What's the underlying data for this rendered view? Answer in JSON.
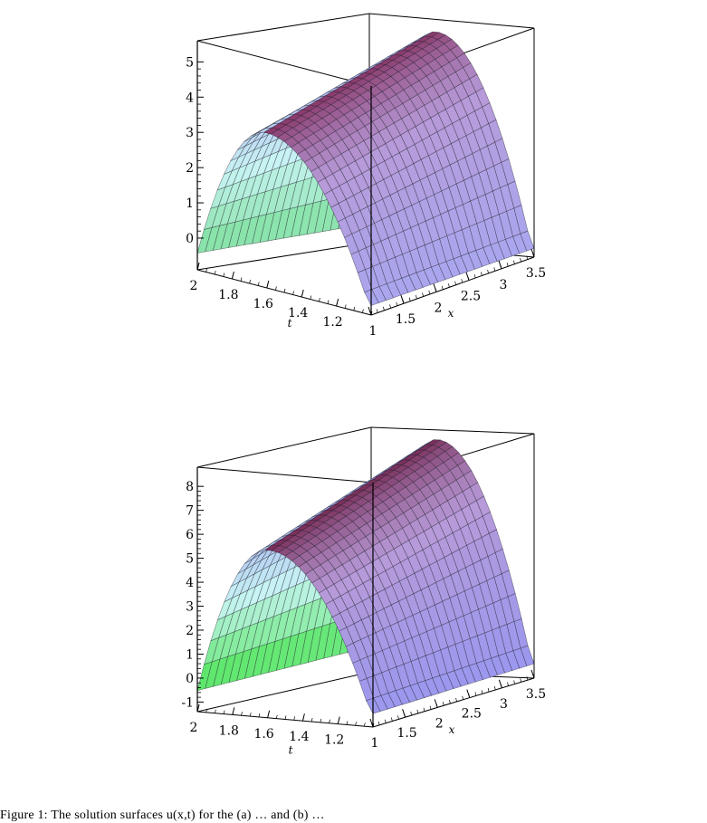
{
  "caption": "Figure 1: The solution surfaces u(x,t) for the (a) … and (b) …",
  "chart_data": [
    {
      "type": "surface",
      "xlabel": "x",
      "ylabel": "t",
      "x_ticks": [
        "1",
        "1.5",
        "2",
        "2.5",
        "3",
        "3.5"
      ],
      "t_ticks": [
        "1.2",
        "1.4",
        "1.6",
        "1.8",
        "2"
      ],
      "z_ticks": [
        "0",
        "1",
        "2",
        "3",
        "4",
        "5"
      ],
      "xlim": [
        1,
        3.5
      ],
      "tlim": [
        1,
        2
      ],
      "zlim": [
        -0.9,
        5.6
      ],
      "z_peak": 5.0,
      "z_far_corner": -0.9,
      "colormap": [
        "#6fdc8c",
        "#c8f4f4",
        "#a9a7f0",
        "#b79ad8",
        "#8a3a6c"
      ]
    },
    {
      "type": "surface",
      "xlabel": "x",
      "ylabel": "t",
      "x_ticks": [
        "1",
        "1.5",
        "2",
        "2.5",
        "3",
        "3.5"
      ],
      "t_ticks": [
        "1.2",
        "1.4",
        "1.6",
        "1.8",
        "2"
      ],
      "z_ticks": [
        "-1",
        "0",
        "1",
        "2",
        "3",
        "4",
        "5",
        "6",
        "7",
        "8"
      ],
      "xlim": [
        1,
        3.5
      ],
      "tlim": [
        1,
        2
      ],
      "zlim": [
        -1.4,
        8.8
      ],
      "z_peak": 8.0,
      "z_far_corner": -1.2,
      "colormap": [
        "#2fe12f",
        "#c8f4f4",
        "#9a98f0",
        "#b79ad8",
        "#7a2f5a"
      ]
    }
  ]
}
